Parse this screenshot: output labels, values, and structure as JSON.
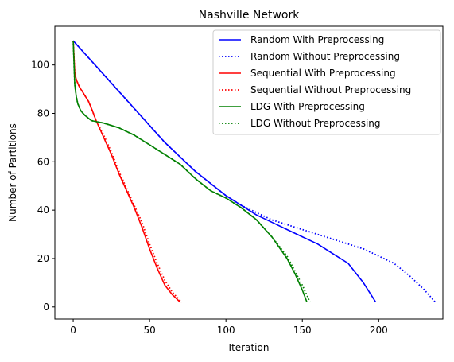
{
  "chart_data": {
    "type": "line",
    "title": "Nashville Network",
    "xlabel": "Iteration",
    "ylabel": "Number of Partitions",
    "xlim": [
      -12,
      242
    ],
    "ylim": [
      -5,
      116
    ],
    "xticks": [
      0,
      50,
      100,
      150,
      200
    ],
    "yticks": [
      0,
      20,
      40,
      60,
      80,
      100
    ],
    "grid": false,
    "legend_position": "top-right",
    "series": [
      {
        "name": "Random With Preprocessing",
        "color": "#0000ff",
        "linestyle": "solid",
        "x": [
          0,
          10,
          20,
          30,
          40,
          50,
          60,
          70,
          80,
          90,
          100,
          110,
          120,
          130,
          140,
          150,
          160,
          170,
          180,
          185,
          190,
          195,
          198
        ],
        "y": [
          110,
          103,
          96,
          89,
          82,
          75,
          68,
          62,
          56,
          51,
          46,
          42,
          38,
          35,
          32,
          29,
          26,
          22,
          18,
          14,
          10,
          5,
          2
        ]
      },
      {
        "name": "Random Without Preprocessing",
        "color": "#0000ff",
        "linestyle": "dotted",
        "x": [
          0,
          10,
          20,
          30,
          40,
          50,
          60,
          70,
          80,
          90,
          100,
          110,
          120,
          130,
          140,
          150,
          160,
          170,
          180,
          190,
          200,
          210,
          220,
          230,
          237
        ],
        "y": [
          110,
          103,
          96,
          89,
          82,
          75,
          68,
          62,
          56,
          51,
          46,
          42,
          39,
          36,
          34,
          32,
          30,
          28,
          26,
          24,
          21,
          18,
          13,
          7,
          2
        ]
      },
      {
        "name": "Sequential With Preprocessing",
        "color": "#ff0000",
        "linestyle": "solid",
        "x": [
          0,
          1,
          2,
          4,
          6,
          8,
          10,
          12,
          15,
          20,
          25,
          30,
          35,
          40,
          45,
          50,
          55,
          60,
          65,
          70
        ],
        "y": [
          110,
          97,
          94,
          91,
          89,
          87,
          85,
          82,
          77,
          70,
          63,
          55,
          48,
          41,
          33,
          24,
          16,
          9,
          5,
          2
        ]
      },
      {
        "name": "Sequential Without Preprocessing",
        "color": "#ff0000",
        "linestyle": "dotted",
        "x": [
          0,
          1,
          2,
          4,
          6,
          8,
          10,
          12,
          15,
          20,
          25,
          30,
          35,
          40,
          45,
          50,
          55,
          60,
          65,
          71
        ],
        "y": [
          110,
          97,
          94,
          91,
          89,
          87,
          85,
          82,
          77,
          71,
          64,
          56,
          49,
          42,
          35,
          26,
          18,
          11,
          6,
          2
        ]
      },
      {
        "name": "LDG With Preprocessing",
        "color": "#008000",
        "linestyle": "solid",
        "x": [
          0,
          1,
          2,
          3,
          5,
          8,
          12,
          20,
          30,
          40,
          50,
          60,
          70,
          80,
          90,
          100,
          110,
          120,
          130,
          140,
          145,
          150,
          153
        ],
        "y": [
          110,
          92,
          87,
          84,
          81,
          79,
          77,
          76,
          74,
          71,
          67,
          63,
          59,
          53,
          48,
          45,
          41,
          36,
          29,
          20,
          14,
          7,
          2
        ]
      },
      {
        "name": "LDG Without Preprocessing",
        "color": "#008000",
        "linestyle": "dotted",
        "x": [
          0,
          1,
          2,
          3,
          5,
          8,
          12,
          20,
          30,
          40,
          50,
          60,
          70,
          80,
          90,
          100,
          110,
          120,
          130,
          140,
          145,
          150,
          155
        ],
        "y": [
          110,
          92,
          87,
          84,
          81,
          79,
          77,
          76,
          74,
          71,
          67,
          63,
          59,
          53,
          48,
          45,
          41,
          36,
          29,
          21,
          15,
          9,
          2
        ]
      }
    ]
  }
}
